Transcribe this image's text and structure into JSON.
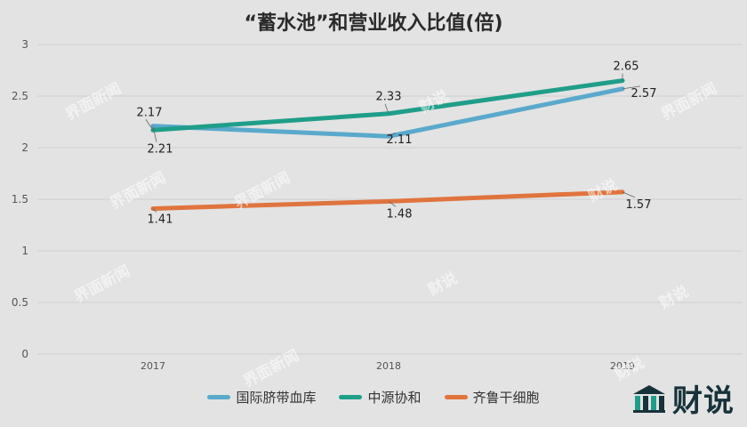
{
  "chart_data": {
    "type": "line",
    "title": "“蓄水池”和营业收入比值(倍)",
    "categories": [
      "2017",
      "2018",
      "2019"
    ],
    "ylim": [
      0,
      3
    ],
    "yticks": [
      "0",
      "0.5",
      "1",
      "1.5",
      "2",
      "2.5",
      "3"
    ],
    "grid": true,
    "legend_position": "bottom",
    "series": [
      {
        "name": "国际脐带血库",
        "values": [
          2.21,
          2.11,
          2.57
        ],
        "labels": [
          "2.21",
          "2.11",
          "2.57"
        ],
        "color": "#5aa9cc"
      },
      {
        "name": "中源协和",
        "values": [
          2.17,
          2.33,
          2.65
        ],
        "labels": [
          "2.17",
          "2.33",
          "2.65"
        ],
        "color": "#1f9e8a"
      },
      {
        "name": "齐鲁干细胞",
        "values": [
          1.41,
          1.48,
          1.57
        ],
        "labels": [
          "1.41",
          "1.48",
          "1.57"
        ],
        "color": "#e0743e"
      }
    ]
  },
  "watermarks": [
    "界面新闻",
    "财说"
  ],
  "brand": {
    "text": "财说",
    "icon": "building-columns-logo-icon"
  }
}
